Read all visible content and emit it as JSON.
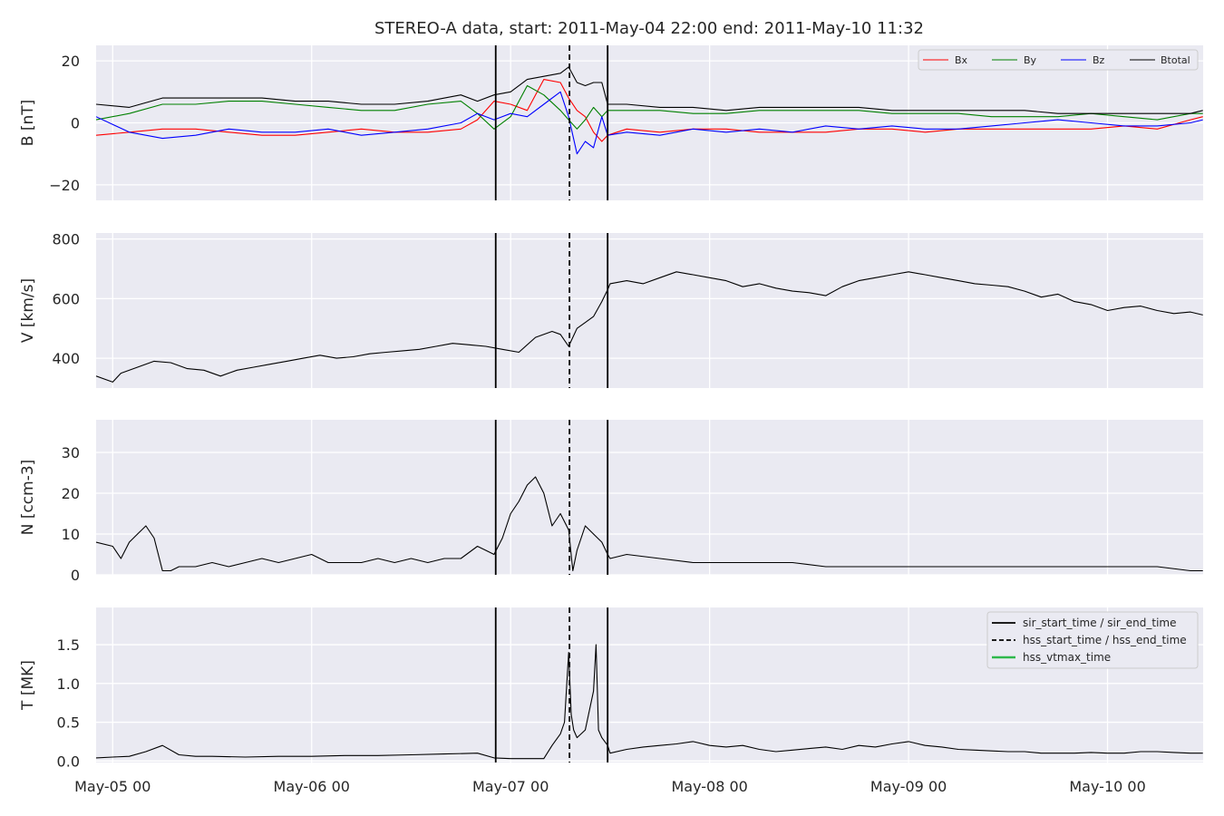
{
  "title": "STEREO-A data, start: 2011-May-04 22:00  end: 2011-May-10 11:32",
  "x_range_hours": [
    -2,
    131.53
  ],
  "x_ticks": [
    {
      "hours": 0,
      "label": "May-05 00"
    },
    {
      "hours": 24,
      "label": "May-06 00"
    },
    {
      "hours": 48,
      "label": "May-07 00"
    },
    {
      "hours": 72,
      "label": "May-08 00"
    },
    {
      "hours": 96,
      "label": "May-09 00"
    },
    {
      "hours": 120,
      "label": "May-10 00"
    }
  ],
  "event_lines": [
    {
      "name": "sir_start_time",
      "hours": 46.2,
      "style": "solid"
    },
    {
      "name": "hss_start_time",
      "hours": 55.1,
      "style": "dashed"
    },
    {
      "name": "sir_end_time",
      "hours": 59.7,
      "style": "solid"
    }
  ],
  "colors": {
    "background": "#EAEAF2",
    "grid": "#FFFFFF",
    "bx": "#FF0000",
    "by": "#008000",
    "bz": "#0000FF",
    "btotal": "#000000",
    "vtmax": "#2EB84B"
  },
  "chart_data": [
    {
      "type": "line",
      "panel": "magnetic-field",
      "ylabel": "B [nT]",
      "ylim": [
        -25,
        25
      ],
      "yticks": [
        {
          "value": 20,
          "label": "20"
        },
        {
          "value": 0,
          "label": "0"
        },
        {
          "value": -20,
          "label": "−20"
        }
      ],
      "legend_placement": "top-right",
      "x_hours": [
        -2,
        2,
        6,
        10,
        14,
        18,
        22,
        26,
        30,
        34,
        38,
        42,
        44,
        46,
        48,
        50,
        52,
        54,
        55,
        56,
        57,
        58,
        59,
        59.7,
        62,
        66,
        70,
        74,
        78,
        82,
        86,
        90,
        94,
        98,
        102,
        106,
        110,
        114,
        118,
        122,
        126,
        130,
        131.5
      ],
      "series": [
        {
          "name": "Bx",
          "color": "#FF0000",
          "values": [
            -4,
            -3,
            -2,
            -2,
            -3,
            -4,
            -4,
            -3,
            -2,
            -3,
            -3,
            -2,
            1,
            7,
            6,
            4,
            14,
            13,
            8,
            4,
            2,
            -3,
            -6,
            -4,
            -2,
            -3,
            -2,
            -2,
            -3,
            -3,
            -3,
            -2,
            -2,
            -3,
            -2,
            -2,
            -2,
            -2,
            -2,
            -1,
            -2,
            1,
            2
          ]
        },
        {
          "name": "By",
          "color": "#008000",
          "values": [
            1,
            3,
            6,
            6,
            7,
            7,
            6,
            5,
            4,
            4,
            6,
            7,
            3,
            -2,
            2,
            12,
            9,
            4,
            1,
            -2,
            1,
            5,
            2,
            4,
            4,
            4,
            3,
            3,
            4,
            4,
            4,
            4,
            3,
            3,
            3,
            2,
            2,
            2,
            3,
            2,
            1,
            3,
            3
          ]
        },
        {
          "name": "Bz",
          "color": "#0000FF",
          "values": [
            2,
            -3,
            -5,
            -4,
            -2,
            -3,
            -3,
            -2,
            -4,
            -3,
            -2,
            0,
            3,
            1,
            3,
            2,
            6,
            10,
            2,
            -10,
            -6,
            -8,
            2,
            -4,
            -3,
            -4,
            -2,
            -3,
            -2,
            -3,
            -1,
            -2,
            -1,
            -2,
            -2,
            -1,
            0,
            1,
            0,
            -1,
            -1,
            0,
            1
          ]
        },
        {
          "name": "Btotal",
          "color": "#000000",
          "values": [
            6,
            5,
            8,
            8,
            8,
            8,
            7,
            7,
            6,
            6,
            7,
            9,
            7,
            9,
            10,
            14,
            15,
            16,
            18,
            13,
            12,
            13,
            13,
            6,
            6,
            5,
            5,
            4,
            5,
            5,
            5,
            5,
            4,
            4,
            4,
            4,
            4,
            3,
            3,
            3,
            3,
            3,
            4
          ]
        }
      ]
    },
    {
      "type": "line",
      "panel": "velocity",
      "ylabel": "V [km/s]",
      "ylim": [
        300,
        820
      ],
      "yticks": [
        {
          "value": 800,
          "label": "800"
        },
        {
          "value": 600,
          "label": "600"
        },
        {
          "value": 400,
          "label": "400"
        }
      ],
      "x_hours": [
        -2,
        0,
        1,
        3,
        5,
        7,
        9,
        11,
        13,
        15,
        17,
        19,
        21,
        23,
        25,
        27,
        29,
        31,
        33,
        35,
        37,
        39,
        41,
        43,
        45,
        47,
        49,
        51,
        53,
        54,
        55,
        56,
        57,
        58,
        59,
        59.7,
        60,
        62,
        64,
        66,
        68,
        70,
        72,
        74,
        76,
        78,
        80,
        82,
        84,
        86,
        88,
        90,
        92,
        94,
        96,
        98,
        100,
        102,
        104,
        106,
        108,
        110,
        112,
        114,
        116,
        118,
        120,
        122,
        124,
        126,
        128,
        130,
        131.5
      ],
      "values": [
        340,
        320,
        350,
        370,
        390,
        385,
        365,
        360,
        340,
        360,
        370,
        380,
        390,
        400,
        410,
        400,
        405,
        415,
        420,
        425,
        430,
        440,
        450,
        445,
        440,
        430,
        420,
        470,
        490,
        480,
        440,
        500,
        520,
        540,
        590,
        630,
        650,
        660,
        650,
        670,
        690,
        680,
        670,
        660,
        640,
        650,
        635,
        625,
        620,
        610,
        640,
        660,
        670,
        680,
        690,
        680,
        670,
        660,
        650,
        645,
        640,
        625,
        605,
        615,
        590,
        580,
        560,
        570,
        575,
        560,
        550,
        555,
        545
      ]
    },
    {
      "type": "line",
      "panel": "density",
      "ylabel": "N [ccm-3]",
      "ylim": [
        0,
        38
      ],
      "yticks": [
        {
          "value": 30,
          "label": "30"
        },
        {
          "value": 20,
          "label": "20"
        },
        {
          "value": 10,
          "label": "10"
        },
        {
          "value": 0,
          "label": "0"
        }
      ],
      "x_hours": [
        -2,
        0,
        1,
        2,
        3,
        4,
        5,
        6,
        7,
        8,
        10,
        12,
        14,
        16,
        18,
        20,
        22,
        24,
        26,
        28,
        30,
        32,
        34,
        36,
        38,
        40,
        42,
        44,
        45,
        46,
        47,
        48,
        49,
        50,
        51,
        52,
        53,
        54,
        55,
        55.5,
        56,
        57,
        58,
        59,
        59.7,
        60,
        62,
        66,
        70,
        74,
        78,
        82,
        86,
        90,
        94,
        98,
        102,
        106,
        110,
        114,
        118,
        122,
        126,
        130,
        131.5
      ],
      "values": [
        8,
        7,
        4,
        8,
        10,
        12,
        9,
        1,
        1,
        2,
        2,
        3,
        2,
        3,
        4,
        3,
        4,
        5,
        3,
        3,
        3,
        4,
        3,
        4,
        3,
        4,
        4,
        7,
        6,
        5,
        9,
        15,
        18,
        22,
        24,
        20,
        12,
        15,
        11,
        1,
        6,
        12,
        10,
        8,
        5,
        4,
        5,
        4,
        3,
        3,
        3,
        3,
        2,
        2,
        2,
        2,
        2,
        2,
        2,
        2,
        2,
        2,
        2,
        1,
        1
      ]
    },
    {
      "type": "line",
      "panel": "temperature",
      "ylabel": "T [MK]",
      "ylim": [
        -0.02,
        1.98
      ],
      "yticks": [
        {
          "value": 1.5,
          "label": "1.5"
        },
        {
          "value": 1.0,
          "label": "1.0"
        },
        {
          "value": 0.5,
          "label": "0.5"
        },
        {
          "value": 0.0,
          "label": "0.0"
        }
      ],
      "legend_placement": "top-right",
      "legend": [
        {
          "label": "sir_start_time / sir_end_time",
          "style": "solid",
          "color": "#000000"
        },
        {
          "label": "hss_start_time / hss_end_time",
          "style": "dashed",
          "color": "#000000"
        },
        {
          "label": "hss_vtmax_time",
          "style": "solid",
          "color": "#2EB84B"
        }
      ],
      "x_hours": [
        -2,
        0,
        2,
        4,
        6,
        8,
        10,
        12,
        16,
        20,
        24,
        28,
        32,
        36,
        40,
        44,
        46,
        48,
        50,
        52,
        53,
        54,
        54.5,
        55,
        55.3,
        55.6,
        56,
        57,
        58,
        58.3,
        58.6,
        59,
        59.7,
        60,
        62,
        64,
        66,
        68,
        70,
        72,
        74,
        76,
        78,
        80,
        82,
        84,
        86,
        88,
        90,
        92,
        94,
        96,
        98,
        100,
        102,
        104,
        106,
        108,
        110,
        112,
        114,
        116,
        118,
        120,
        122,
        124,
        126,
        128,
        130,
        131.5
      ],
      "values": [
        0.04,
        0.05,
        0.06,
        0.12,
        0.2,
        0.08,
        0.06,
        0.06,
        0.05,
        0.06,
        0.06,
        0.07,
        0.07,
        0.08,
        0.09,
        0.1,
        0.04,
        0.03,
        0.03,
        0.03,
        0.2,
        0.35,
        0.5,
        1.4,
        0.6,
        0.4,
        0.3,
        0.4,
        0.9,
        1.5,
        0.4,
        0.3,
        0.2,
        0.1,
        0.15,
        0.18,
        0.2,
        0.22,
        0.25,
        0.2,
        0.18,
        0.2,
        0.15,
        0.12,
        0.14,
        0.16,
        0.18,
        0.15,
        0.2,
        0.18,
        0.22,
        0.25,
        0.2,
        0.18,
        0.15,
        0.14,
        0.13,
        0.12,
        0.12,
        0.1,
        0.1,
        0.1,
        0.11,
        0.1,
        0.1,
        0.12,
        0.12,
        0.11,
        0.1,
        0.1
      ]
    }
  ]
}
